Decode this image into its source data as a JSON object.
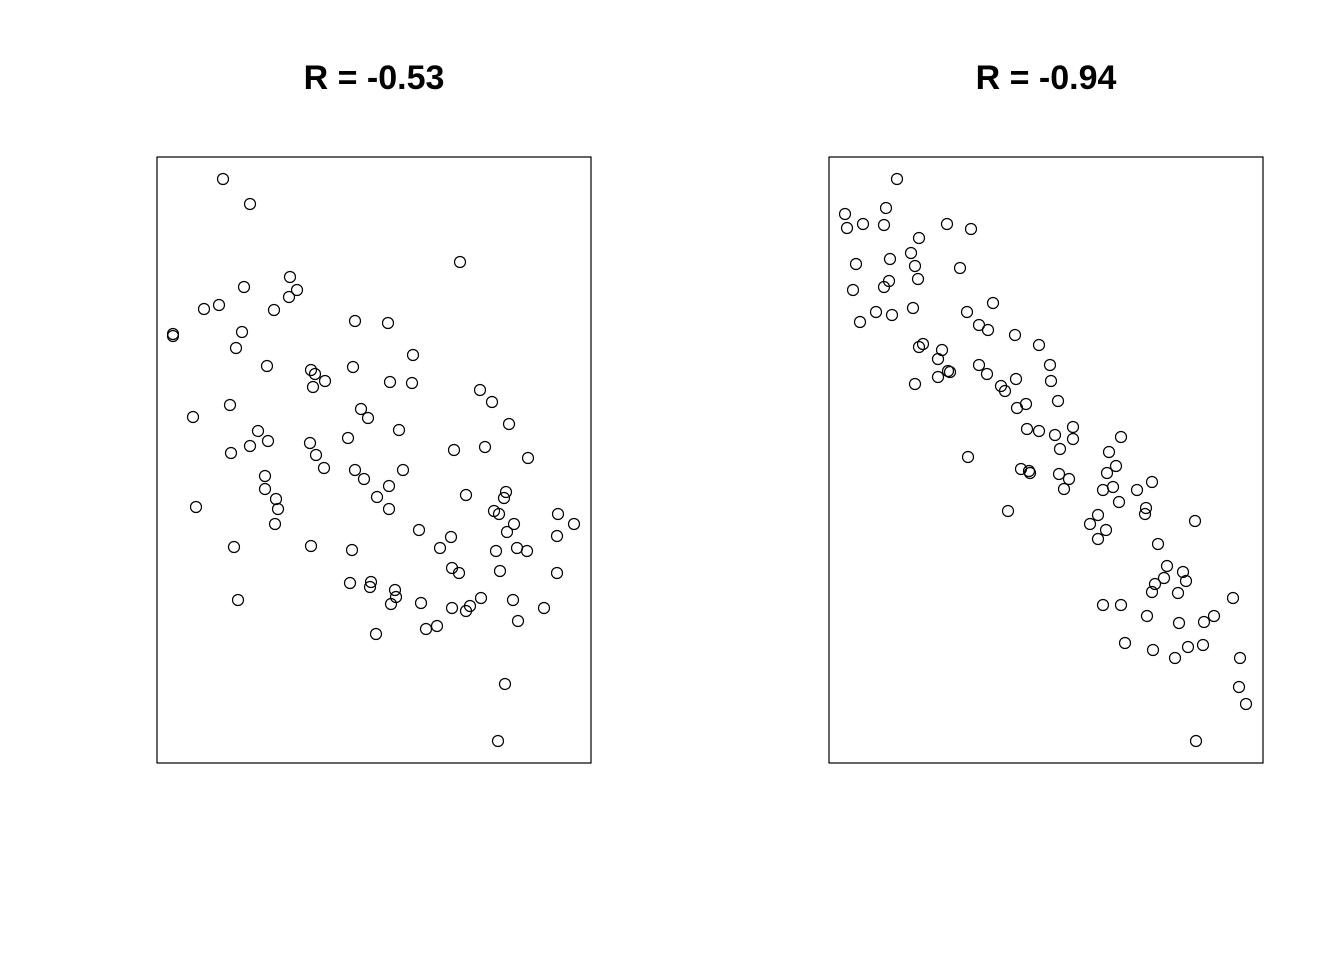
{
  "chart_data": [
    {
      "type": "scatter",
      "title": "R = -0.53",
      "color": "#000000",
      "xlim": [
        157,
        591
      ],
      "ylim": [
        197,
        803
      ],
      "x": [
        223,
        250,
        460,
        290,
        297,
        244,
        289,
        219,
        204,
        274,
        173,
        173,
        242,
        355,
        388,
        236,
        413,
        267,
        353,
        311,
        315,
        325,
        313,
        390,
        412,
        480,
        492,
        230,
        361,
        368,
        193,
        509,
        258,
        399,
        268,
        250,
        348,
        310,
        231,
        316,
        454,
        485,
        528,
        324,
        355,
        403,
        364,
        265,
        265,
        389,
        377,
        276,
        466,
        506,
        504,
        196,
        278,
        389,
        494,
        499,
        558,
        514,
        574,
        275,
        419,
        507,
        451,
        557,
        234,
        311,
        352,
        440,
        517,
        496,
        527,
        452,
        459,
        500,
        557,
        350,
        371,
        370,
        395,
        396,
        391,
        238,
        481,
        421,
        513,
        452,
        470,
        466,
        544,
        518,
        437,
        426,
        376,
        505,
        498
      ],
      "values": [
        781,
        756,
        698,
        683,
        670,
        673,
        663,
        655,
        651,
        650,
        626,
        624,
        628,
        639,
        637,
        612,
        605,
        594,
        593,
        590,
        586,
        579,
        573,
        578,
        577,
        570,
        558,
        555,
        551,
        542,
        543,
        536,
        529,
        530,
        519,
        514,
        522,
        517,
        507,
        505,
        510,
        513,
        502,
        492,
        490,
        490,
        481,
        484,
        471,
        474,
        463,
        461,
        465,
        468,
        462,
        453,
        451,
        451,
        449,
        446,
        446,
        436,
        436,
        436,
        430,
        428,
        423,
        424,
        413,
        414,
        410,
        412,
        412,
        409,
        409,
        392,
        387,
        389,
        387,
        377,
        378,
        373,
        370,
        363,
        356,
        360,
        362,
        357,
        360,
        352,
        354,
        349,
        352,
        339,
        334,
        331,
        326,
        276,
        219
      ]
    },
    {
      "type": "scatter",
      "title": "R = -0.94",
      "color": "#000000",
      "xlim": [
        829,
        1263
      ],
      "ylim": [
        197,
        803
      ],
      "x": [
        897,
        845,
        886,
        847,
        863,
        884,
        947,
        971,
        919,
        911,
        890,
        856,
        915,
        960,
        889,
        918,
        884,
        853,
        993,
        913,
        876,
        892,
        967,
        860,
        979,
        988,
        1015,
        923,
        919,
        942,
        1039,
        938,
        1050,
        979,
        948,
        950,
        938,
        987,
        1016,
        1051,
        915,
        1001,
        1005,
        1058,
        1026,
        1017,
        1073,
        1027,
        1039,
        1055,
        1073,
        1121,
        1060,
        1109,
        968,
        1116,
        1021,
        1029,
        1030,
        1059,
        1107,
        1069,
        1152,
        1113,
        1103,
        1137,
        1064,
        1119,
        1146,
        1145,
        1008,
        1098,
        1195,
        1090,
        1106,
        1098,
        1158,
        1167,
        1183,
        1164,
        1186,
        1155,
        1152,
        1178,
        1233,
        1103,
        1121,
        1214,
        1147,
        1179,
        1204,
        1125,
        1188,
        1203,
        1153,
        1175,
        1240,
        1239,
        1246,
        1196
      ],
      "values": [
        781,
        746,
        752,
        732,
        736,
        735,
        736,
        731,
        722,
        707,
        701,
        696,
        694,
        692,
        679,
        681,
        673,
        670,
        657,
        652,
        648,
        645,
        648,
        638,
        635,
        630,
        625,
        616,
        613,
        610,
        615,
        601,
        595,
        595,
        589,
        588,
        583,
        586,
        581,
        579,
        576,
        574,
        569,
        559,
        556,
        552,
        533,
        531,
        529,
        525,
        521,
        523,
        511,
        508,
        503,
        494,
        491,
        489,
        487,
        486,
        487,
        481,
        478,
        473,
        470,
        470,
        471,
        458,
        452,
        446,
        449,
        445,
        439,
        436,
        430,
        421,
        416,
        394,
        388,
        382,
        379,
        376,
        368,
        367,
        362,
        355,
        355,
        344,
        344,
        337,
        338,
        317,
        313,
        315,
        310,
        302,
        302,
        273,
        256,
        219
      ]
    }
  ]
}
